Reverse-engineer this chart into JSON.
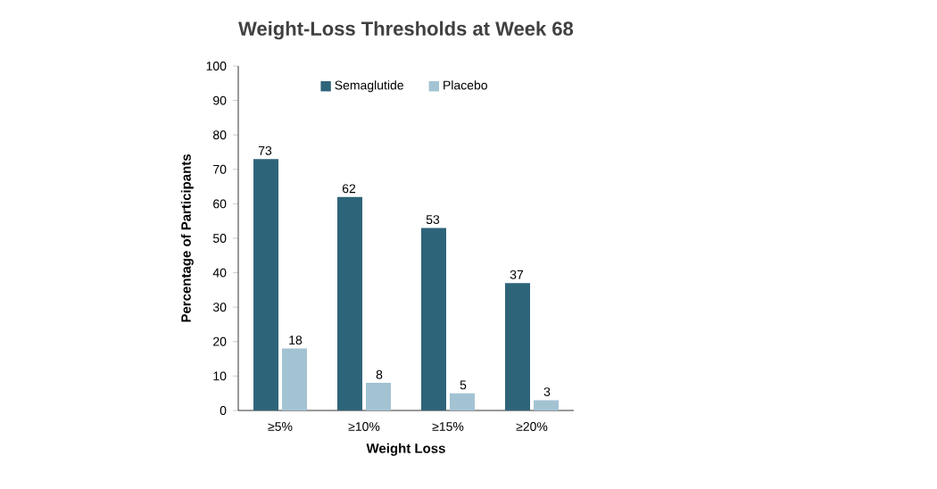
{
  "chart_data": {
    "type": "bar",
    "title": "Weight-Loss Thresholds at Week 68",
    "xlabel": "Weight Loss",
    "ylabel": "Percentage of Participants",
    "categories": [
      "≥5%",
      "≥10%",
      "≥15%",
      "≥20%"
    ],
    "series": [
      {
        "name": "Semaglutide",
        "color": "#2e6479",
        "values": [
          73,
          62,
          53,
          37
        ]
      },
      {
        "name": "Placebo",
        "color": "#a3c3d3",
        "values": [
          18,
          8,
          5,
          3
        ]
      }
    ],
    "ylim": [
      0,
      100
    ],
    "yticks": [
      0,
      10,
      20,
      30,
      40,
      50,
      60,
      70,
      80,
      90,
      100
    ],
    "data_labels": true,
    "legend": "top",
    "grid": false
  }
}
